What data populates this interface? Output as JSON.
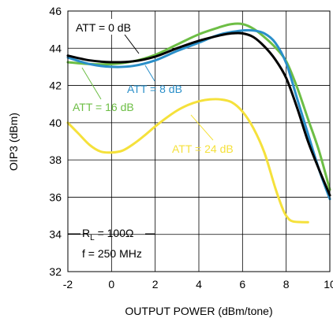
{
  "chart_data": {
    "type": "line",
    "xlabel": "OUTPUT POWER (dBm/tone)",
    "ylabel": "OIP3 (dBm)",
    "xlim": [
      -2,
      10
    ],
    "ylim": [
      32,
      46
    ],
    "xticks": [
      "-2",
      "0",
      "2",
      "4",
      "6",
      "8",
      "10"
    ],
    "yticks": [
      "32",
      "34",
      "36",
      "38",
      "40",
      "42",
      "44",
      "46"
    ],
    "grid": true,
    "series": [
      {
        "name": "ATT = 0 dB",
        "color": "#000000",
        "points": [
          [
            -2,
            43.6
          ],
          [
            -1,
            43.35
          ],
          [
            0,
            43.25
          ],
          [
            1,
            43.3
          ],
          [
            2,
            43.55
          ],
          [
            3,
            44.0
          ],
          [
            4,
            44.4
          ],
          [
            5,
            44.7
          ],
          [
            5.5,
            44.8
          ],
          [
            6,
            44.8
          ],
          [
            6.5,
            44.6
          ],
          [
            7,
            44.1
          ],
          [
            7.5,
            43.4
          ],
          [
            8,
            42.4
          ],
          [
            8.5,
            40.8
          ],
          [
            9,
            39.0
          ],
          [
            9.5,
            37.5
          ],
          [
            10,
            36.1
          ]
        ]
      },
      {
        "name": "ATT = 8 dB",
        "color": "#2A8FC9",
        "points": [
          [
            -2,
            43.5
          ],
          [
            -1,
            43.15
          ],
          [
            0,
            43.0
          ],
          [
            1,
            43.05
          ],
          [
            2,
            43.35
          ],
          [
            3,
            43.85
          ],
          [
            4,
            44.3
          ],
          [
            5,
            44.75
          ],
          [
            6,
            44.95
          ],
          [
            6.5,
            44.95
          ],
          [
            7,
            44.8
          ],
          [
            7.5,
            44.3
          ],
          [
            8,
            43.2
          ],
          [
            8.5,
            41.3
          ],
          [
            9,
            39.4
          ],
          [
            9.5,
            37.5
          ],
          [
            10,
            35.9
          ]
        ]
      },
      {
        "name": "ATT = 16 dB",
        "color": "#6DBE45",
        "points": [
          [
            -2,
            43.25
          ],
          [
            -1,
            43.15
          ],
          [
            0,
            43.15
          ],
          [
            1,
            43.3
          ],
          [
            2,
            43.65
          ],
          [
            3,
            44.2
          ],
          [
            4,
            44.75
          ],
          [
            5,
            45.15
          ],
          [
            5.5,
            45.3
          ],
          [
            6,
            45.3
          ],
          [
            6.5,
            45.05
          ],
          [
            7,
            44.6
          ],
          [
            7.5,
            44.05
          ],
          [
            8,
            43.3
          ],
          [
            8.5,
            41.9
          ],
          [
            9,
            40.2
          ],
          [
            9.5,
            38.5
          ],
          [
            10,
            36.4
          ]
        ]
      },
      {
        "name": "ATT = 24 dB",
        "color": "#F5E13B",
        "points": [
          [
            -2,
            40.0
          ],
          [
            -1.5,
            39.4
          ],
          [
            -1,
            38.8
          ],
          [
            -0.5,
            38.45
          ],
          [
            0,
            38.4
          ],
          [
            0.5,
            38.5
          ],
          [
            1,
            38.85
          ],
          [
            1.5,
            39.3
          ],
          [
            2,
            39.8
          ],
          [
            2.5,
            40.25
          ],
          [
            3,
            40.65
          ],
          [
            3.5,
            40.95
          ],
          [
            4,
            41.15
          ],
          [
            4.5,
            41.25
          ],
          [
            5,
            41.25
          ],
          [
            5.5,
            41.1
          ],
          [
            6,
            40.6
          ],
          [
            6.5,
            39.7
          ],
          [
            7,
            38.4
          ],
          [
            7.5,
            36.5
          ],
          [
            7.8,
            35.5
          ],
          [
            8,
            35.0
          ],
          [
            8.3,
            34.7
          ],
          [
            9,
            34.65
          ]
        ]
      }
    ],
    "annotations": {
      "att0": "ATT = 0 dB",
      "att8": "ATT = 8 dB",
      "att16": "ATT = 16 dB",
      "att24": "ATT = 24 dB",
      "rl_prefix": "R",
      "rl_sub": "L",
      "rl_suffix": " = 100Ω",
      "freq": "f = 250 MHz"
    }
  }
}
